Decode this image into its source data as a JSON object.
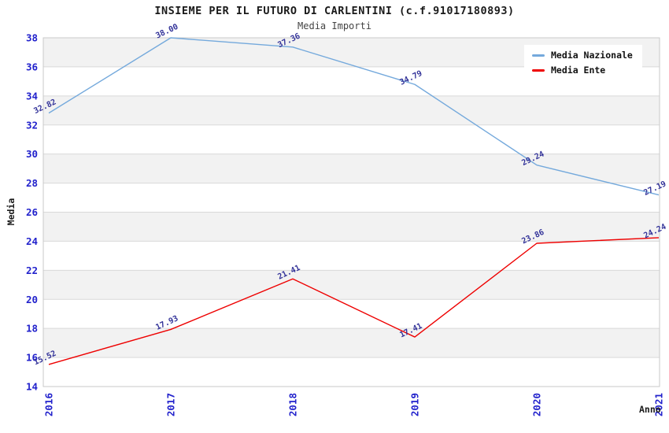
{
  "chart": {
    "title": "INSIEME PER IL FUTURO DI CARLENTINI (c.f.91017180893)",
    "subtitle": "Media Importi"
  },
  "chart_data": {
    "type": "line",
    "title": "INSIEME PER IL FUTURO DI CARLENTINI (c.f.91017180893)",
    "subtitle": "Media Importi",
    "xlabel": "Anno",
    "ylabel": "Media",
    "categories": [
      "2016",
      "2017",
      "2018",
      "2019",
      "2020",
      "2021"
    ],
    "series": [
      {
        "name": "Media Nazionale",
        "color": "#74a9dc",
        "values": [
          32.82,
          38.0,
          37.36,
          34.79,
          29.24,
          27.19
        ]
      },
      {
        "name": "Media Ente",
        "color": "#ee0000",
        "values": [
          15.52,
          17.93,
          21.41,
          17.41,
          23.86,
          24.24
        ]
      }
    ],
    "ylim": [
      14,
      38
    ],
    "y_tick_step": 2,
    "grid": true,
    "legend_position": "top-right",
    "band_colors": [
      "#f2f2f2",
      "#ffffff"
    ],
    "gridline_color": "#d9d9d9",
    "border_color": "#c9c9c9",
    "tick_label_color": "#2222cc",
    "data_label_color": "#333399"
  }
}
